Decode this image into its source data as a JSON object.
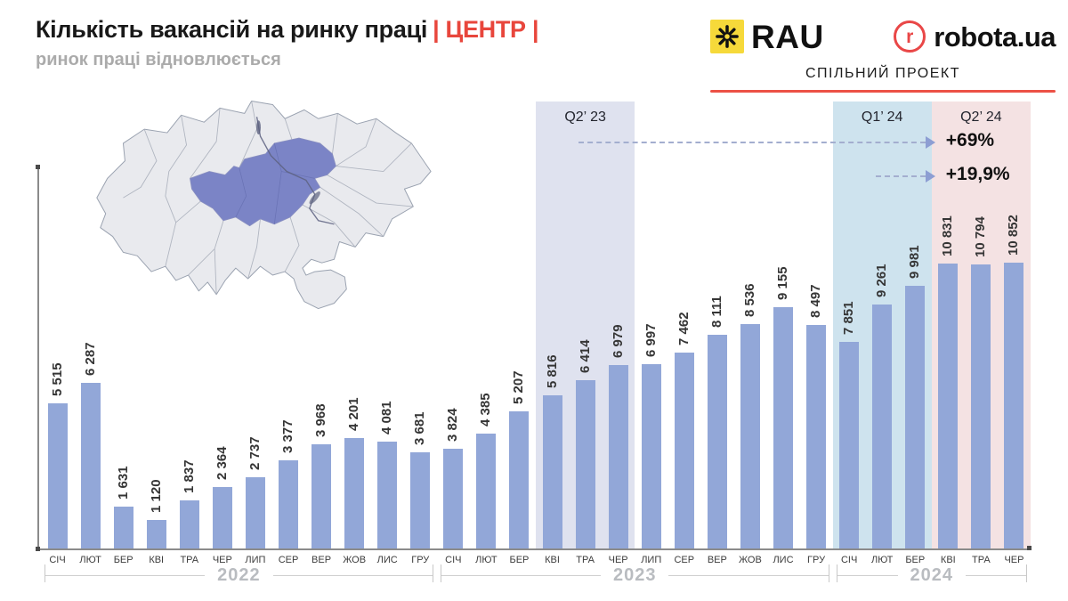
{
  "header": {
    "title": "Кількість вакансій на ринку праці",
    "title_tag": "| ЦЕНТР |",
    "subtitle": "ринок праці відновлюється",
    "accent_red": "#e8463c"
  },
  "partners": {
    "rau_label": "RAU",
    "robota_r": "r",
    "robota_label": "robota.ua",
    "joint_project_label": "СПІЛЬНИЙ ПРОЕКТ",
    "rau_yellow": "#f6d93a",
    "robota_red": "#e94747",
    "divider_red": "#ec5146"
  },
  "map": {
    "base_color": "#e9eaee",
    "border_color": "#9aa2b0",
    "highlight_color": "#7b84c6"
  },
  "annotations": {
    "bands": [
      {
        "label": "Q2’ 23",
        "start": 15,
        "end": 17,
        "color": "#dfe2ef"
      },
      {
        "label": "Q1’ 24",
        "start": 24,
        "end": 26,
        "color": "#cee3ee"
      },
      {
        "label": "Q2’ 24",
        "start": 27,
        "end": 29,
        "color": "#f4e2e3"
      }
    ],
    "arrows": [
      {
        "label": "+69%",
        "from_band": 0,
        "to_band": 2,
        "y": 159
      },
      {
        "label": "+19,9%",
        "from_band": 1,
        "to_band": 2,
        "y": 197
      }
    ]
  },
  "chart_data": {
    "type": "bar",
    "bar_color": "#92a7d8",
    "categories": [
      "СІЧ",
      "ЛЮТ",
      "БЕР",
      "КВІ",
      "ТРА",
      "ЧЕР",
      "ЛИП",
      "СЕР",
      "ВЕР",
      "ЖОВ",
      "ЛИС",
      "ГРУ",
      "СІЧ",
      "ЛЮТ",
      "БЕР",
      "КВІ",
      "ТРА",
      "ЧЕР",
      "ЛИП",
      "СЕР",
      "ВЕР",
      "ЖОВ",
      "ЛИС",
      "ГРУ",
      "СІЧ",
      "ЛЮТ",
      "БЕР",
      "КВІ",
      "ТРА",
      "ЧЕР"
    ],
    "values": [
      5515,
      6287,
      1631,
      1120,
      1837,
      2364,
      2737,
      3377,
      3968,
      4201,
      4081,
      3681,
      3824,
      4385,
      5207,
      5816,
      6414,
      6979,
      6997,
      7462,
      8111,
      8536,
      9155,
      8497,
      7851,
      9261,
      9981,
      10831,
      10794,
      10852
    ],
    "year_groups": [
      {
        "label": "2022",
        "start": 0,
        "end": 11
      },
      {
        "label": "2023",
        "start": 12,
        "end": 23
      },
      {
        "label": "2024",
        "start": 24,
        "end": 29
      }
    ],
    "title": "Кількість вакансій на ринку праці | ЦЕНТР |",
    "xlabel": "",
    "ylabel": "",
    "ylim": [
      0,
      10852
    ],
    "grid": false,
    "legend": false
  }
}
